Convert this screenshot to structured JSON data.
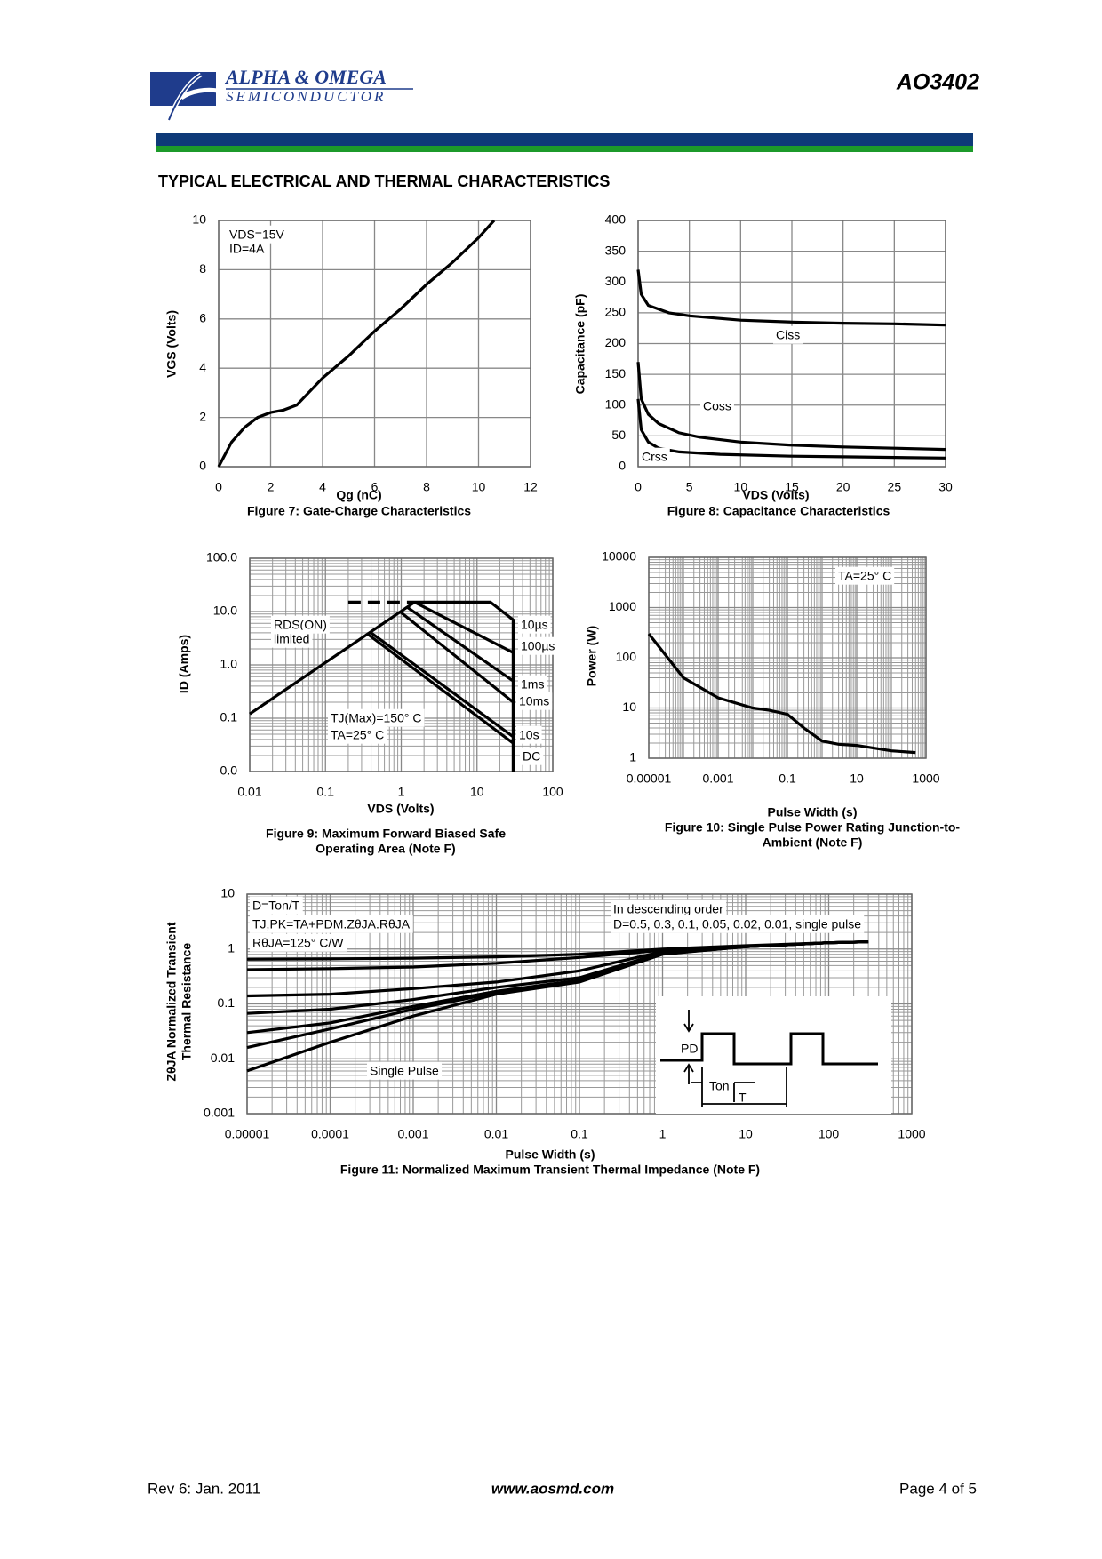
{
  "header": {
    "company": "ALPHA & OMEGA",
    "division": "SEMICONDUCTOR",
    "part": "AO3402"
  },
  "section_title": "TYPICAL ELECTRICAL AND THERMAL CHARACTERISTICS",
  "chart_data": [
    {
      "type": "line",
      "title": [
        "Figure 7: Gate-Charge Characteristics"
      ],
      "x_label": "Qg (nC)",
      "y_label": [
        "VGS (Volts)"
      ],
      "xlim": [
        0,
        12
      ],
      "xticks": [
        0,
        2,
        4,
        6,
        8,
        10,
        12
      ],
      "ylim": [
        0,
        10
      ],
      "yticks": [
        0,
        2,
        4,
        6,
        8,
        10
      ],
      "grid": true,
      "annotations": [
        "VDS=15V",
        "ID=4A"
      ],
      "series": [
        {
          "color": "#000000",
          "x": [
            0,
            0.5,
            1,
            1.5,
            2,
            2.5,
            3,
            4,
            5,
            6,
            7,
            8,
            9,
            10,
            10.6
          ],
          "values": [
            0,
            1,
            1.6,
            2,
            2.2,
            2.3,
            2.5,
            3.6,
            4.5,
            5.5,
            6.4,
            7.4,
            8.3,
            9.3,
            10
          ]
        }
      ]
    },
    {
      "type": "line",
      "title": [
        "Figure 8: Capacitance Characteristics"
      ],
      "x_label": "VDS (Volts)",
      "y_label": [
        "Capacitance (pF)"
      ],
      "xlim": [
        0,
        30
      ],
      "xticks": [
        0,
        5,
        10,
        15,
        20,
        25,
        30
      ],
      "ylim": [
        0,
        400
      ],
      "yticks": [
        0,
        50,
        100,
        150,
        200,
        250,
        300,
        350,
        400
      ],
      "grid": true,
      "series": [
        {
          "name": "Ciss",
          "color": "#000000",
          "x": [
            0,
            0.3,
            1,
            3,
            5,
            10,
            15,
            20,
            25,
            30
          ],
          "values": [
            320,
            280,
            262,
            250,
            245,
            238,
            235,
            233,
            232,
            230
          ]
        },
        {
          "name": "Coss",
          "color": "#000000",
          "x": [
            0,
            0.3,
            1,
            2,
            4,
            6,
            10,
            15,
            20,
            25,
            30
          ],
          "values": [
            170,
            110,
            85,
            70,
            55,
            48,
            40,
            35,
            32,
            30,
            28
          ]
        },
        {
          "name": "Crss",
          "color": "#000000",
          "x": [
            0,
            0.3,
            1,
            2,
            4,
            8,
            15,
            20,
            30
          ],
          "values": [
            110,
            60,
            40,
            30,
            24,
            20,
            17,
            16,
            14
          ]
        }
      ]
    },
    {
      "type": "line",
      "title": [
        "Figure 9: Maximum Forward Biased Safe",
        "Operating Area (Note F)"
      ],
      "x_label": "VDS (Volts)",
      "y_label": [
        "ID (Amps)"
      ],
      "xscale": "log",
      "yscale": "log",
      "grid": true,
      "xlim": [
        0.01,
        100
      ],
      "xticks": [
        0.01,
        0.1,
        1,
        10,
        100
      ],
      "ylim": [
        0.01,
        100
      ],
      "yticks": [
        {
          "value": 0.01,
          "label": "0.0"
        },
        {
          "value": 0.1,
          "label": "0.1"
        },
        {
          "value": 1,
          "label": "1.0"
        },
        {
          "value": 10,
          "label": "10.0"
        },
        {
          "value": 100,
          "label": "100.0"
        }
      ],
      "annotations": [
        "RDS(ON)",
        "limited",
        "TJ(Max)=150° C",
        "TA=25° C"
      ],
      "series": [
        {
          "name": "10µs",
          "color": "#000000",
          "x": [
            1.5,
            15,
            30,
            30
          ],
          "values": [
            15,
            15,
            7,
            0.034
          ]
        },
        {
          "name": "100µs",
          "color": "#000000",
          "x": [
            1.5,
            30
          ],
          "values": [
            15,
            1.7
          ]
        },
        {
          "name": "1ms",
          "color": "#000000",
          "x": [
            1.2,
            30
          ],
          "values": [
            12,
            0.5
          ]
        },
        {
          "name": "10ms",
          "color": "#000000",
          "x": [
            1,
            30
          ],
          "values": [
            9.5,
            0.2
          ]
        },
        {
          "name": "10s",
          "color": "#000000",
          "x": [
            0.4,
            30
          ],
          "values": [
            4,
            0.045
          ]
        },
        {
          "name": "DC",
          "color": "#000000",
          "x": [
            0.35,
            30,
            30
          ],
          "values": [
            3.9,
            0.034,
            0.01
          ]
        },
        {
          "color": "#000000",
          "x": [
            0.01,
            1.5
          ],
          "values": [
            0.12,
            15
          ]
        },
        {
          "color": "#000000",
          "dash": true,
          "x": [
            0.2,
            1.5
          ],
          "values": [
            15,
            15
          ]
        }
      ]
    },
    {
      "type": "line",
      "title": [
        "Figure 10: Single Pulse Power Rating Junction-to-",
        "Ambient (Note F)"
      ],
      "x_label": "Pulse Width (s)",
      "y_label": [
        "Power (W)"
      ],
      "xscale": "log",
      "yscale": "log",
      "grid": true,
      "xlim": [
        1e-05,
        1000
      ],
      "xticks": [
        1e-05,
        0.001,
        0.1,
        10,
        1000
      ],
      "ylim": [
        1,
        10000
      ],
      "yticks": [
        1,
        10,
        100,
        1000,
        10000
      ],
      "annotations": [
        "TA=25° C"
      ],
      "series": [
        {
          "color": "#000000",
          "x": [
            1e-05,
            0.0001,
            0.001,
            0.01,
            0.03,
            0.1,
            0.3,
            1,
            3,
            10,
            100,
            500
          ],
          "values": [
            300,
            40,
            16,
            10,
            9,
            7.5,
            4,
            2.2,
            1.9,
            1.8,
            1.4,
            1.3
          ]
        }
      ]
    },
    {
      "type": "line",
      "title": [
        "Figure 11: Normalized Maximum Transient Thermal Impedance (Note F)"
      ],
      "x_label": "Pulse Width (s)",
      "y_label": [
        "ZθJA Normalized Transient",
        "Thermal Resistance"
      ],
      "xscale": "log",
      "yscale": "log",
      "grid": true,
      "xlim": [
        1e-05,
        1000
      ],
      "xticks": [
        1e-05,
        0.0001,
        0.001,
        0.01,
        0.1,
        1,
        10,
        100,
        1000
      ],
      "ylim": [
        0.001,
        10
      ],
      "yticks": [
        0.001,
        0.01,
        0.1,
        1,
        10
      ],
      "annotations": [
        "D=Ton/T",
        "TJ,PK=TA+PDM.ZθJA.RθJA",
        "RθJA=125° C/W",
        "In descending order",
        "D=0.5, 0.3, 0.1, 0.05, 0.02, 0.01, single pulse",
        "Single Pulse",
        "PD",
        "Ton",
        "T"
      ],
      "series": [
        {
          "color": "#000000",
          "x": [
            1e-05,
            0.0001,
            0.001,
            0.01,
            0.1,
            1,
            10,
            100,
            300
          ],
          "values": [
            0.65,
            0.66,
            0.68,
            0.72,
            0.8,
            1.0,
            1.15,
            1.3,
            1.35
          ]
        },
        {
          "color": "#000000",
          "x": [
            1e-05,
            0.0001,
            0.001,
            0.01,
            0.1,
            1,
            10,
            100,
            300
          ],
          "values": [
            0.42,
            0.44,
            0.47,
            0.55,
            0.7,
            0.95,
            1.12,
            1.3,
            1.35
          ]
        },
        {
          "color": "#000000",
          "x": [
            1e-05,
            0.0001,
            0.001,
            0.01,
            0.1,
            1,
            10,
            100,
            300
          ],
          "values": [
            0.14,
            0.15,
            0.19,
            0.25,
            0.4,
            0.9,
            1.1,
            1.3,
            1.35
          ]
        },
        {
          "color": "#000000",
          "x": [
            1e-05,
            0.0001,
            0.001,
            0.01,
            0.1,
            1,
            10,
            100,
            300
          ],
          "values": [
            0.067,
            0.08,
            0.12,
            0.2,
            0.3,
            0.85,
            1.1,
            1.3,
            1.35
          ]
        },
        {
          "color": "#000000",
          "x": [
            1e-05,
            0.0001,
            0.001,
            0.01,
            0.1,
            1,
            10,
            100,
            300
          ],
          "values": [
            0.03,
            0.045,
            0.09,
            0.17,
            0.27,
            0.82,
            1.1,
            1.3,
            1.35
          ]
        },
        {
          "color": "#000000",
          "x": [
            1e-05,
            0.0001,
            0.001,
            0.01,
            0.1,
            1,
            10,
            100,
            300
          ],
          "values": [
            0.016,
            0.035,
            0.08,
            0.16,
            0.26,
            0.81,
            1.1,
            1.3,
            1.35
          ]
        },
        {
          "color": "#000000",
          "x": [
            1e-05,
            0.0001,
            0.001,
            0.01,
            0.1,
            1,
            10,
            100,
            300
          ],
          "values": [
            0.006,
            0.02,
            0.06,
            0.15,
            0.25,
            0.8,
            1.1,
            1.3,
            1.35
          ]
        }
      ]
    }
  ],
  "footer": {
    "revision": "Rev 6: Jan. 2011",
    "website": "www.aosmd.com",
    "page": "Page 4 of 5"
  }
}
